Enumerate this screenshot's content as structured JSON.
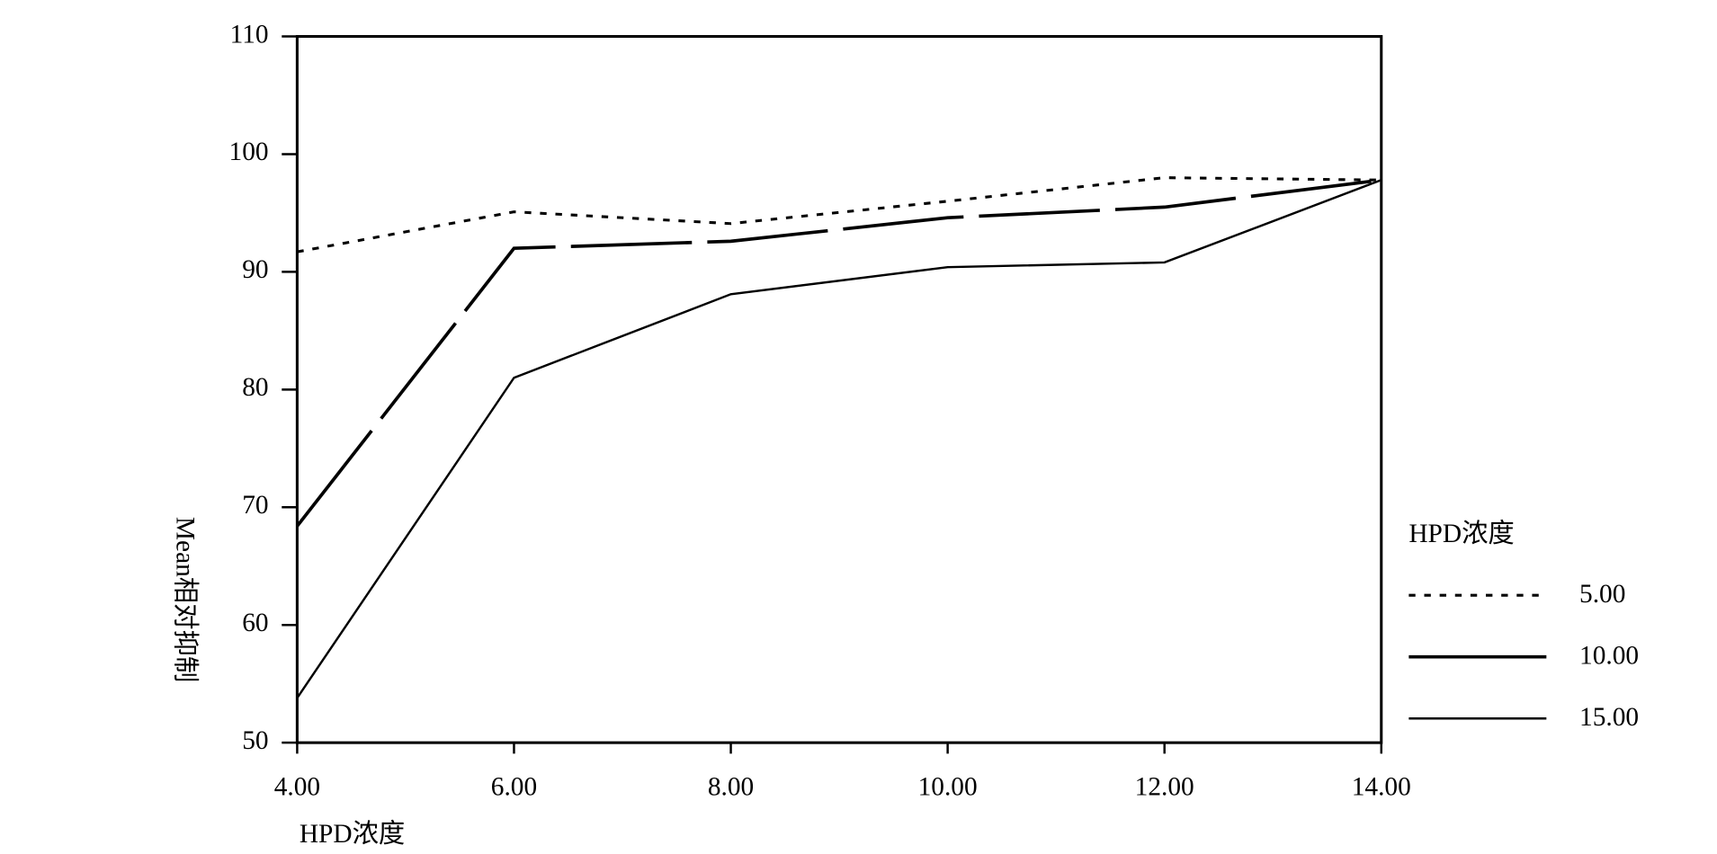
{
  "chart_data": {
    "type": "line",
    "x_label": "HPD浓度",
    "y_label": "Mean相对抑制",
    "x": [
      4,
      6,
      8,
      10,
      12,
      14
    ],
    "xlim": [
      4,
      14
    ],
    "xticks": [
      {
        "value": 4,
        "label": "4.00"
      },
      {
        "value": 6,
        "label": "6.00"
      },
      {
        "value": 8,
        "label": "8.00"
      },
      {
        "value": 10,
        "label": "10.00"
      },
      {
        "value": 12,
        "label": "12.00"
      },
      {
        "value": 14,
        "label": "14.00"
      }
    ],
    "ylim": [
      50,
      110
    ],
    "yticks": [
      50,
      60,
      70,
      80,
      90,
      100,
      110
    ],
    "legend_title": "HPD浓度",
    "legend": "right",
    "series": [
      {
        "name": "5.00",
        "color": "#000000",
        "style": "dotted",
        "values": [
          91.7,
          95.1,
          94.1,
          96,
          98,
          97.8
        ]
      },
      {
        "name": "10.00",
        "color": "#000000",
        "style": "dashed",
        "values": [
          68.4,
          92,
          92.6,
          94.6,
          95.5,
          97.8
        ]
      },
      {
        "name": "15.00",
        "color": "#000000",
        "style": "solid",
        "values": [
          53.8,
          81,
          88.1,
          90.4,
          90.8,
          97.8
        ]
      }
    ]
  }
}
